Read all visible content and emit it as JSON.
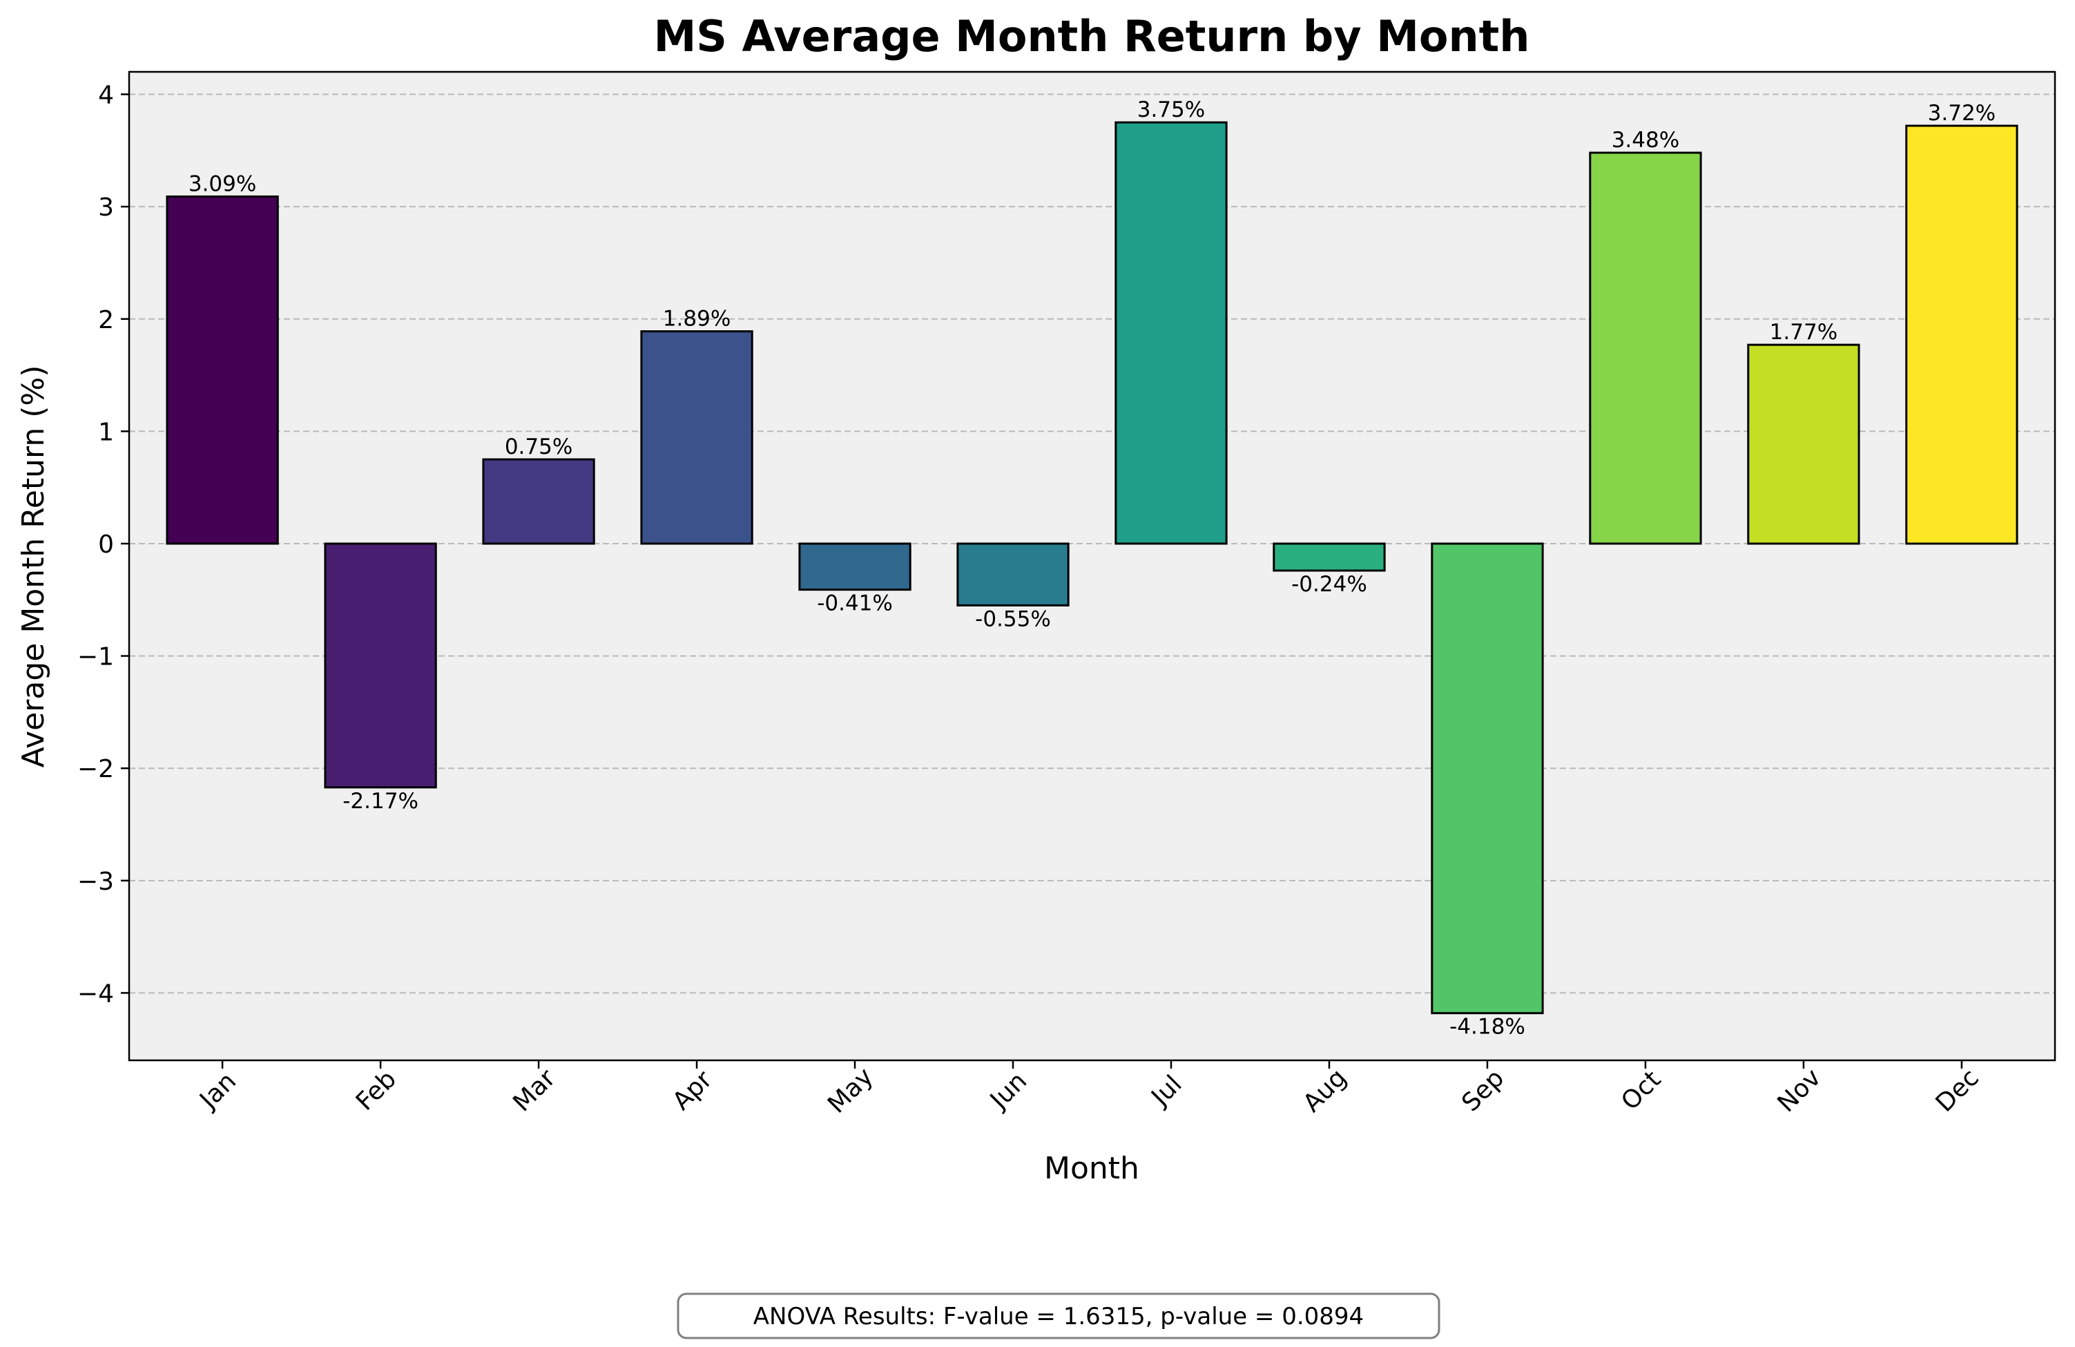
{
  "chart_data": {
    "type": "bar",
    "title": "MS Average Month Return by Month",
    "xlabel": "Month",
    "ylabel": "Average Month Return (%)",
    "categories": [
      "Jan",
      "Feb",
      "Mar",
      "Apr",
      "May",
      "Jun",
      "Jul",
      "Aug",
      "Sep",
      "Oct",
      "Nov",
      "Dec"
    ],
    "values": [
      3.09,
      -2.17,
      0.75,
      1.89,
      -0.41,
      -0.55,
      3.75,
      -0.24,
      -4.18,
      3.48,
      1.77,
      3.72
    ],
    "value_labels": [
      "3.09%",
      "-2.17%",
      "0.75%",
      "1.89%",
      "-0.41%",
      "-0.55%",
      "3.75%",
      "-0.24%",
      "-4.18%",
      "3.48%",
      "1.77%",
      "3.72%"
    ],
    "colors": [
      "#440154",
      "#481f70",
      "#443983",
      "#3b528b",
      "#31688e",
      "#287c8e",
      "#1f9e89",
      "#2ab07f",
      "#52c569",
      "#86d549",
      "#c2df23",
      "#fde725"
    ],
    "ylim": [
      -4.6,
      4.2
    ],
    "yticks": [
      4,
      3,
      2,
      1,
      0,
      -1,
      -2,
      -3,
      -4
    ],
    "ytick_labels": [
      "4",
      "3",
      "2",
      "1",
      "0",
      "−1",
      "−2",
      "−3",
      "−4"
    ],
    "grid": "horizontal dashed",
    "plot_background": "#f0f0f0",
    "bar_edge_color": "#000000"
  },
  "annotation": {
    "text": "ANOVA Results: F-value = 1.6315, p-value = 0.0894"
  }
}
